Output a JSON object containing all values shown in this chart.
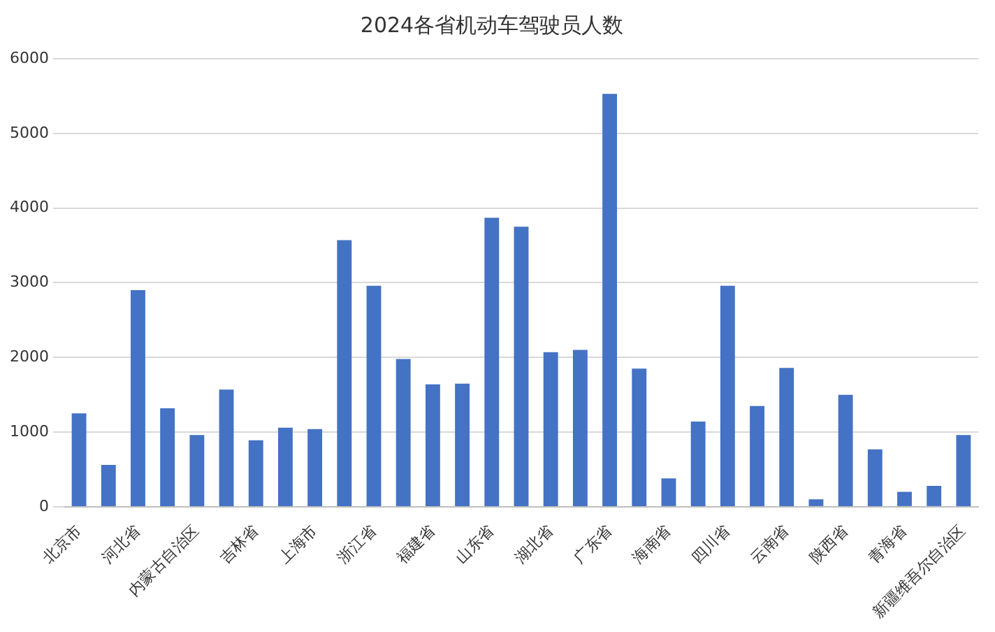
{
  "chart_data": {
    "type": "bar",
    "title": "2024各省机动车驾驶员人数",
    "categories": [
      "北京市",
      null,
      "河北省",
      null,
      "内蒙古自治区",
      null,
      "吉林省",
      null,
      "上海市",
      null,
      "浙江省",
      null,
      "福建省",
      null,
      "山东省",
      null,
      "湖北省",
      null,
      "广东省",
      null,
      "海南省",
      null,
      "四川省",
      null,
      "云南省",
      null,
      "陕西省",
      null,
      "青海省",
      null,
      "新疆维吾尔自治区"
    ],
    "values": [
      1250,
      560,
      2900,
      1320,
      960,
      1570,
      890,
      1060,
      1040,
      3570,
      2960,
      1980,
      1640,
      1650,
      3870,
      3750,
      2070,
      2100,
      5530,
      1850,
      380,
      1140,
      2960,
      1350,
      1860,
      100,
      1500,
      770,
      200,
      280,
      960
    ],
    "color": "#4472c4",
    "ylim": [
      0,
      6000
    ],
    "yticks": [
      0,
      1000,
      2000,
      3000,
      4000,
      5000,
      6000
    ],
    "grid": "y"
  }
}
